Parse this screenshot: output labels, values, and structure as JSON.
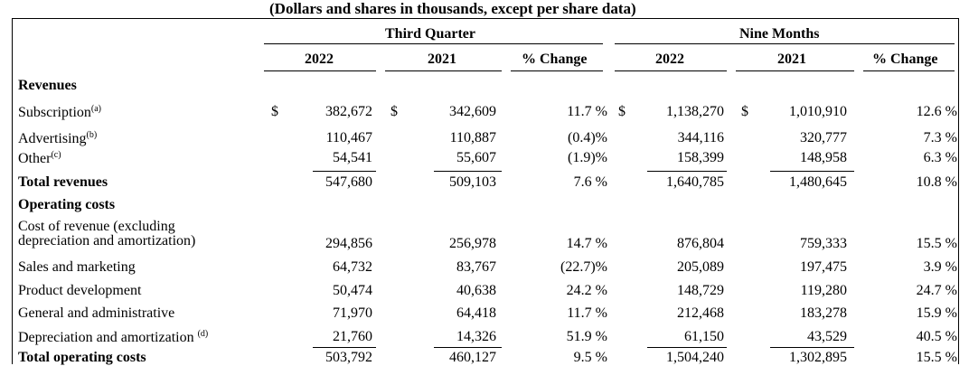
{
  "title": "(Dollars and shares in thousands, except per share data)",
  "groups": {
    "third_quarter": "Third Quarter",
    "nine_months": "Nine Months"
  },
  "columns": [
    "2022",
    "2021",
    "% Change",
    "2022",
    "2021",
    "% Change"
  ],
  "currency_symbol": "$",
  "sections": {
    "revenues": "Revenues",
    "operating_costs": "Operating costs"
  },
  "rows": [
    {
      "label": "Subscription",
      "sup": "(a)",
      "values": [
        "382,672",
        "342,609",
        "11.7 %",
        "1,138,270",
        "1,010,910",
        "12.6 %"
      ]
    },
    {
      "label": "Advertising",
      "sup": "(b)",
      "values": [
        "110,467",
        "110,887",
        "(0.4)%",
        "344,116",
        "320,777",
        "7.3 %"
      ]
    },
    {
      "label": "Other",
      "sup": "(c)",
      "values": [
        "54,541",
        "55,607",
        "(1.9)%",
        "158,399",
        "148,958",
        "6.3 %"
      ]
    },
    {
      "label": "Total revenues",
      "sup": "",
      "values": [
        "547,680",
        "509,103",
        "7.6 %",
        "1,640,785",
        "1,480,645",
        "10.8 %"
      ]
    },
    {
      "label": "Cost of revenue (excluding",
      "label2": "depreciation and amortization)",
      "sup": "",
      "values": [
        "294,856",
        "256,978",
        "14.7 %",
        "876,804",
        "759,333",
        "15.5 %"
      ]
    },
    {
      "label": "Sales and marketing",
      "sup": "",
      "values": [
        "64,732",
        "83,767",
        "(22.7)%",
        "205,089",
        "197,475",
        "3.9 %"
      ]
    },
    {
      "label": "Product development",
      "sup": "",
      "values": [
        "50,474",
        "40,638",
        "24.2 %",
        "148,729",
        "119,280",
        "24.7 %"
      ]
    },
    {
      "label": "General and administrative",
      "sup": "",
      "values": [
        "71,970",
        "64,418",
        "11.7 %",
        "212,468",
        "183,278",
        "15.9 %"
      ]
    },
    {
      "label": "Depreciation and amortization ",
      "sup": "(d)",
      "values": [
        "21,760",
        "14,326",
        "51.9 %",
        "61,150",
        "43,529",
        "40.5 %"
      ]
    },
    {
      "label": "Total operating costs",
      "sup": "",
      "values": [
        "503,792",
        "460,127",
        "9.5 %",
        "1,504,240",
        "1,302,895",
        "15.5 %"
      ]
    }
  ]
}
